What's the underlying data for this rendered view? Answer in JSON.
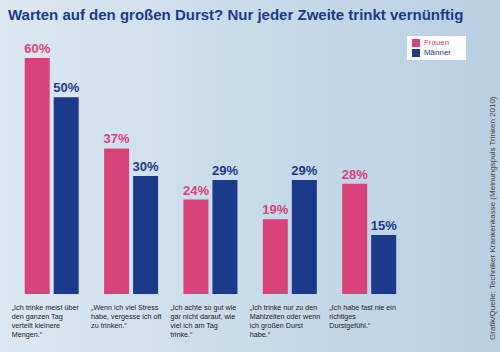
{
  "chart_data": {
    "type": "bar",
    "title": "Warten auf den großen Durst? Nur jeder Zweite trinkt vernünftig",
    "source": "Grafik/Quelle: Techniker Krankenkasse (Meinungspuls Trinken 2010)",
    "categories": [
      "„Ich trinke meist über den ganzen Tag verteilt kleinere Mengen.“",
      "„Wenn ich viel Stress habe, vergesse ich oft zu trinken.“",
      "„Ich achte so gut wie gar nicht darauf, wie viel ich am Tag trinke.“",
      "„Ich trinke nur zu den Mahlzeiten oder wenn ich großen Durst habe.“",
      "„Ich habe fast nie ein richtiges Durstgefühl.“"
    ],
    "series": [
      {
        "name": "Frauen",
        "color": "#d9437c",
        "values": [
          60,
          37,
          24,
          19,
          28
        ],
        "value_labels": [
          "60%",
          "37%",
          "24%",
          "19%",
          "28%"
        ]
      },
      {
        "name": "Männer",
        "color": "#1c3a8c",
        "values": [
          50,
          30,
          29,
          29,
          15
        ],
        "value_labels": [
          "50%",
          "30%",
          "29%",
          "29%",
          "15%"
        ]
      }
    ],
    "ylim": [
      0,
      60
    ],
    "tick_labels": "x",
    "data_labels": true,
    "legend": "upper right"
  }
}
